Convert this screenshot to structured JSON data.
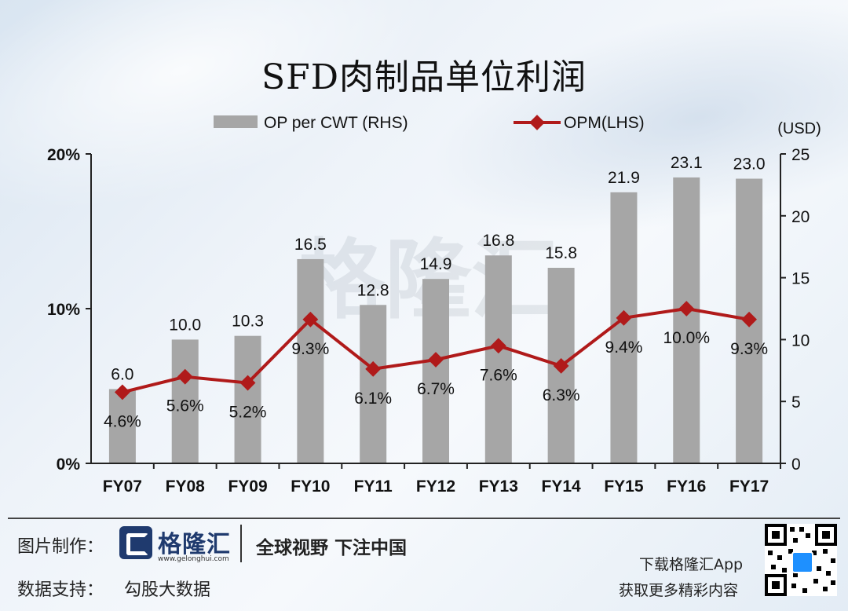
{
  "title": "SFD肉制品单位利润",
  "chart_data": {
    "type": "bar",
    "categories": [
      "FY07",
      "FY08",
      "FY09",
      "FY10",
      "FY11",
      "FY12",
      "FY13",
      "FY14",
      "FY15",
      "FY16",
      "FY17"
    ],
    "series": [
      {
        "name": "OP per CWT (RHS)",
        "axis": "right",
        "kind": "bar",
        "values": [
          6.0,
          10.0,
          10.3,
          16.5,
          12.8,
          14.9,
          16.8,
          15.8,
          21.9,
          23.1,
          23.0
        ],
        "labels": [
          "6.0",
          "10.0",
          "10.3",
          "16.5",
          "12.8",
          "14.9",
          "16.8",
          "15.8",
          "21.9",
          "23.1",
          "23.0"
        ]
      },
      {
        "name": "OPM(LHS)",
        "axis": "left",
        "kind": "line",
        "values": [
          4.6,
          5.6,
          5.2,
          9.3,
          6.1,
          6.7,
          7.6,
          6.3,
          9.4,
          10.0,
          9.3
        ],
        "labels": [
          "4.6%",
          "5.6%",
          "5.2%",
          "9.3%",
          "6.1%",
          "6.7%",
          "7.6%",
          "6.3%",
          "9.4%",
          "10.0%",
          "9.3%"
        ]
      }
    ],
    "left_axis": {
      "ylim": [
        0,
        20
      ],
      "ticks": [
        "0%",
        "10%",
        "20%"
      ],
      "tick_values": [
        0,
        10,
        20
      ]
    },
    "right_axis": {
      "ylim": [
        0,
        25
      ],
      "ticks": [
        "0",
        "5",
        "10",
        "15",
        "20",
        "25"
      ],
      "tick_values": [
        0,
        5,
        10,
        15,
        20,
        25
      ],
      "unit_label": "(USD)"
    },
    "colors": {
      "bar": "#a6a6a6",
      "line": "#b01a1a",
      "axis": "#222222"
    },
    "legend_position": "top"
  },
  "footer": {
    "made_by_label": "图片制作：",
    "logo_name": "格隆汇",
    "logo_url": "www.gelonghui.com",
    "slogan": "全球视野 下注中国",
    "data_support_label": "数据支持：",
    "data_support_value": "勾股大数据",
    "app_line1": "下载格隆汇App",
    "app_line2": "获取更多精彩内容"
  },
  "watermark": "格隆汇"
}
